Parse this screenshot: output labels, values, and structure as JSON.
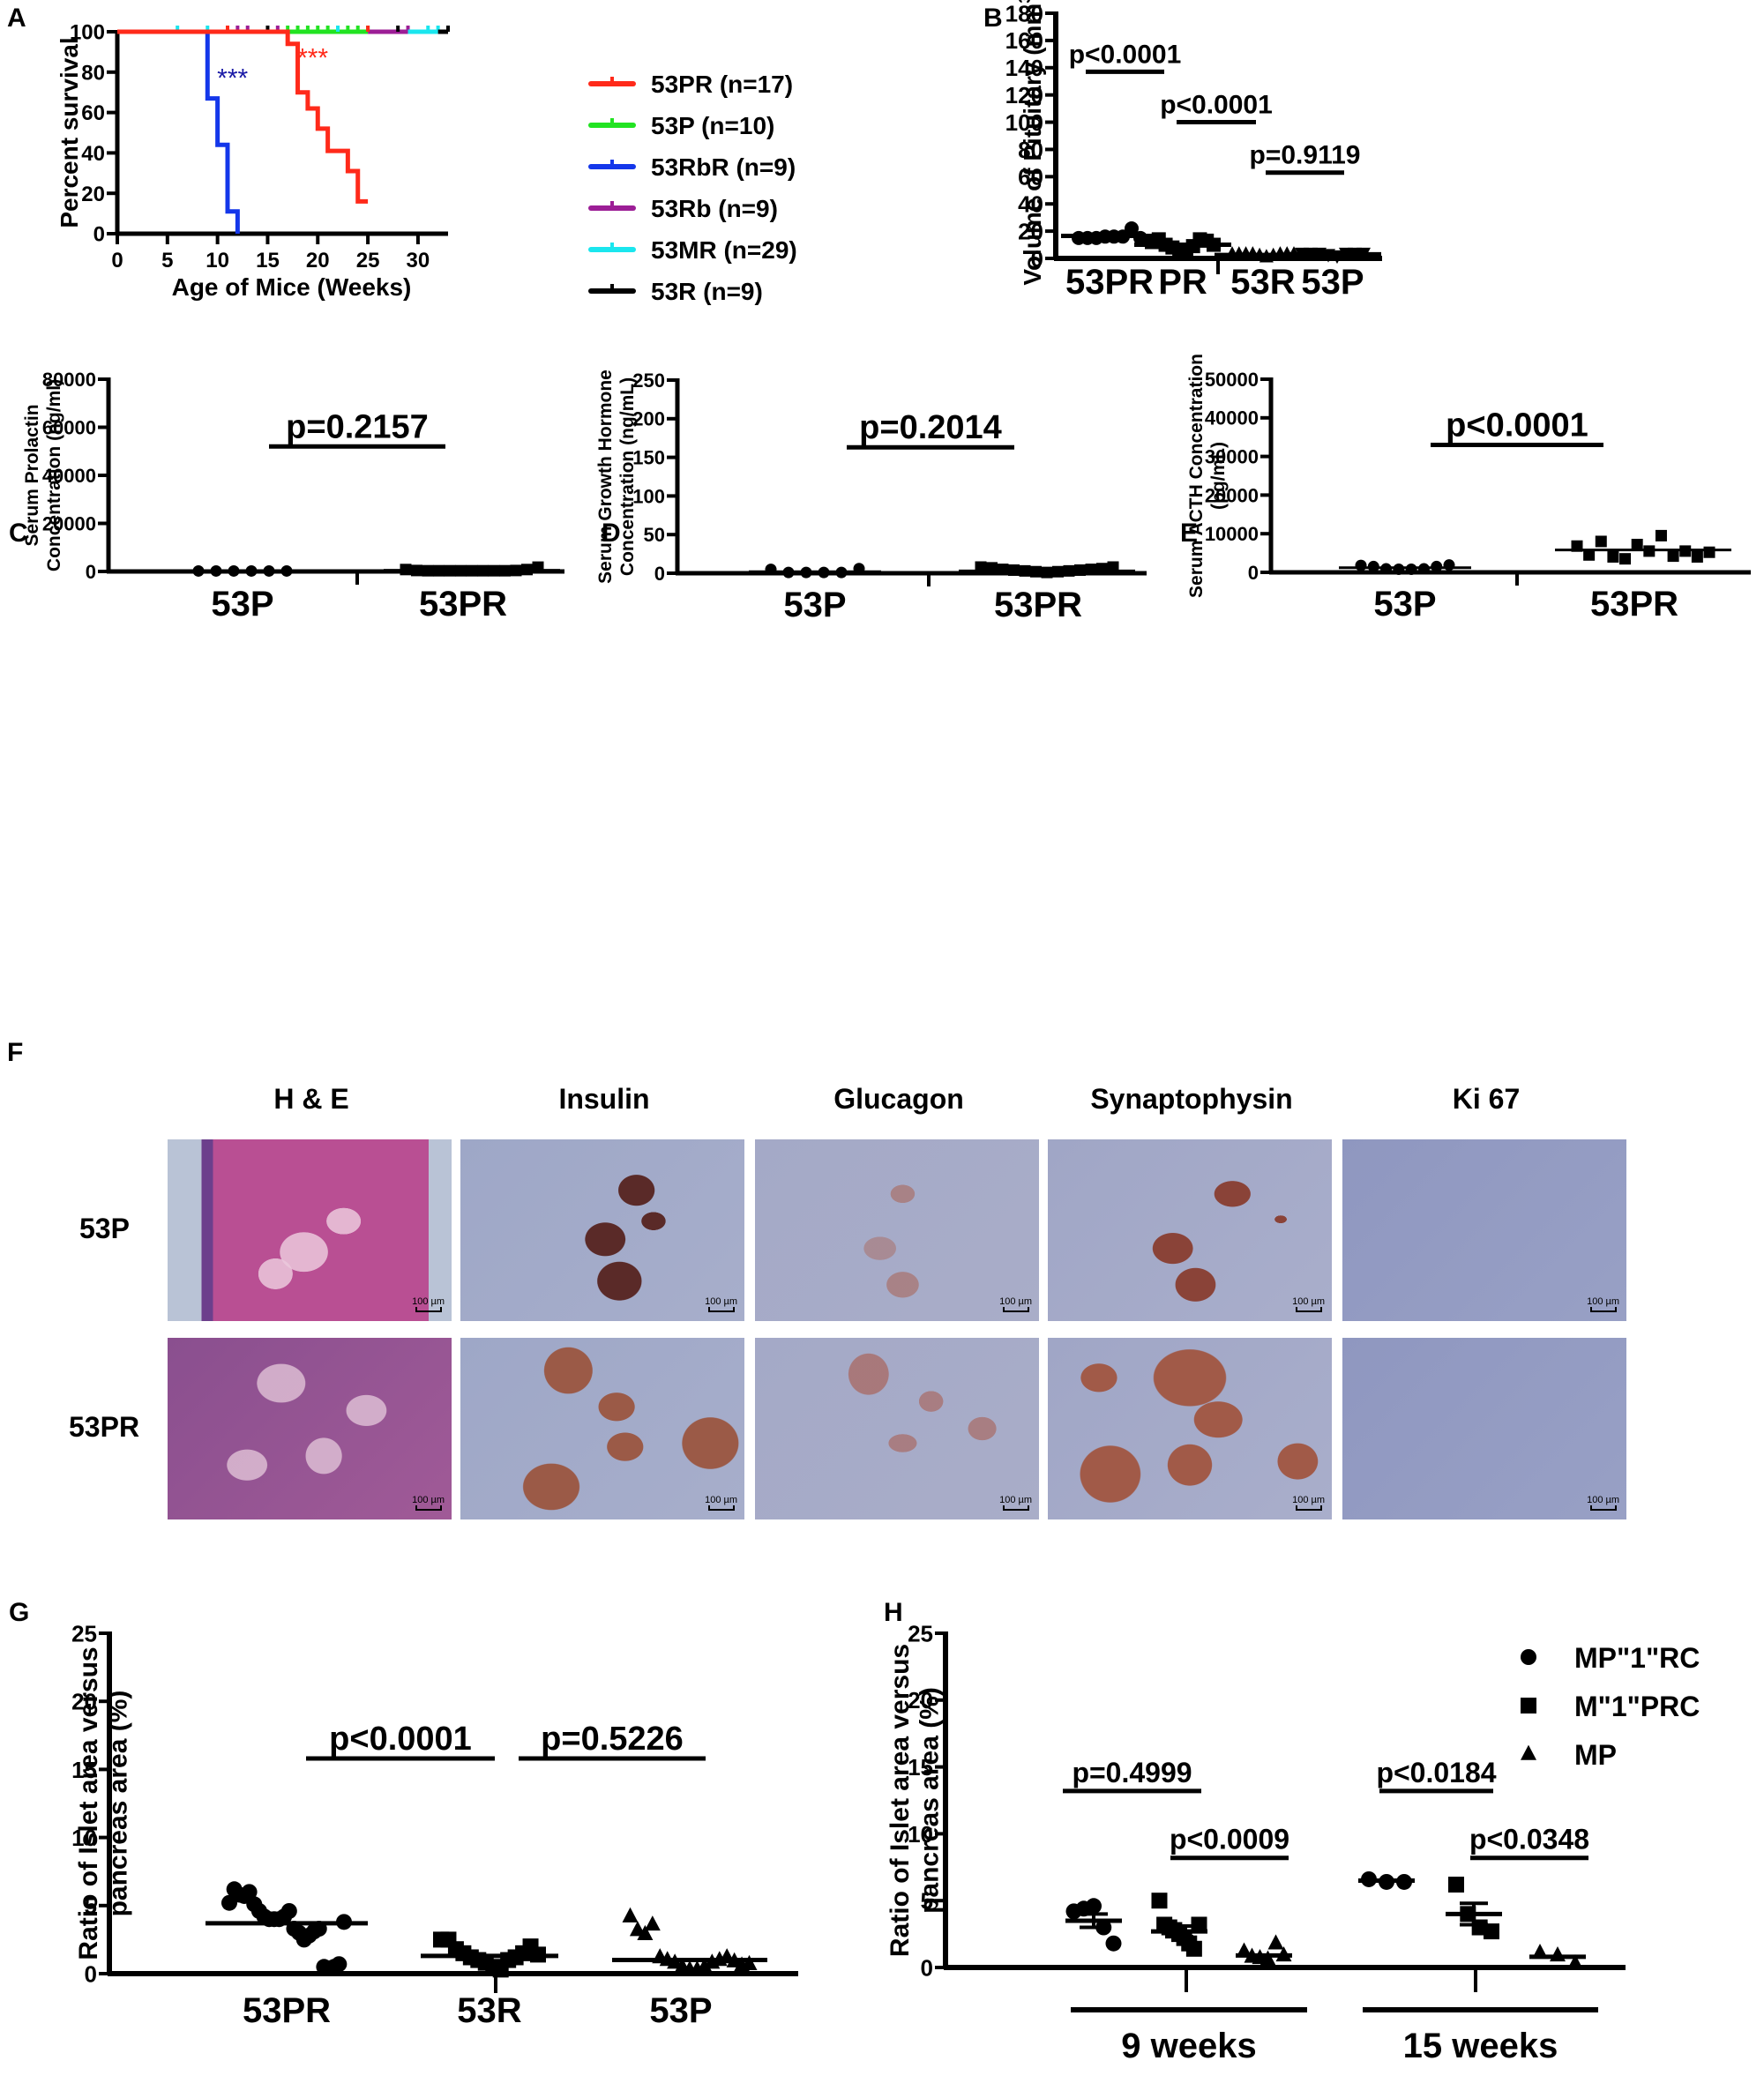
{
  "panels": {
    "A": "A",
    "B": "B",
    "C": "C",
    "D": "D",
    "E": "E",
    "F": "F",
    "G": "G",
    "H": "H"
  },
  "chart_data": [
    {
      "panel": "A",
      "type": "line",
      "subtype": "kaplan-meier step",
      "title": "",
      "xlabel": "Age of Mice (Weeks)",
      "ylabel": "Percent survival",
      "xlim": [
        0,
        33
      ],
      "ylim": [
        0,
        100
      ],
      "xticks": [
        0,
        5,
        10,
        15,
        20,
        25,
        30
      ],
      "yticks": [
        0,
        20,
        40,
        60,
        80,
        100
      ],
      "legend_position": "right",
      "annotations": [
        {
          "text": "***",
          "color": "#1a1aa6",
          "x": 11.5,
          "y": 78
        },
        {
          "text": "***",
          "color": "#ff2a1a",
          "x": 19.5,
          "y": 88
        }
      ],
      "series": [
        {
          "name": "53PR (n=17)",
          "color": "#ff2a1a",
          "steps": [
            [
              0,
              100
            ],
            [
              17,
              100
            ],
            [
              17,
              94
            ],
            [
              18,
              94
            ],
            [
              18,
              70
            ],
            [
              19,
              70
            ],
            [
              19,
              62
            ],
            [
              20,
              62
            ],
            [
              20,
              52
            ],
            [
              21,
              52
            ],
            [
              21,
              41
            ],
            [
              23,
              41
            ],
            [
              23,
              31
            ],
            [
              24,
              31
            ],
            [
              24,
              16
            ],
            [
              25,
              16
            ]
          ],
          "censor_x": [
            11,
            25
          ]
        },
        {
          "name": "53P (n=10)",
          "color": "#22e322",
          "steps": [
            [
              17,
              100
            ],
            [
              25,
              100
            ]
          ],
          "censor_x": [
            17,
            18,
            19,
            20,
            21,
            22,
            23,
            24,
            25
          ]
        },
        {
          "name": "53RbR (n=9)",
          "color": "#1437ea",
          "steps": [
            [
              0,
              100
            ],
            [
              9,
              100
            ],
            [
              9,
              67
            ],
            [
              10,
              67
            ],
            [
              10,
              44
            ],
            [
              11,
              44
            ],
            [
              11,
              11
            ],
            [
              12,
              11
            ],
            [
              12,
              0
            ]
          ],
          "censor_x": []
        },
        {
          "name": "53Rb (n=9)",
          "color": "#9c1e96",
          "steps": [
            [
              25,
              100
            ],
            [
              29,
              100
            ]
          ],
          "censor_x": [
            12,
            13,
            16,
            29
          ]
        },
        {
          "name": "53MR (n=29)",
          "color": "#1ae6ee",
          "steps": [
            [
              29,
              100
            ],
            [
              32,
              100
            ]
          ],
          "censor_x": [
            6,
            9,
            22,
            31,
            32
          ]
        },
        {
          "name": "53R (n=9)",
          "color": "#000000",
          "steps": [
            [
              32,
              100
            ],
            [
              33,
              100
            ]
          ],
          "censor_x": [
            15,
            28,
            33
          ]
        }
      ]
    },
    {
      "panel": "B",
      "type": "scatter",
      "title": "",
      "xlabel": "",
      "ylabel": "Volume of Pituitary (mm³)",
      "ylabel_main": "Volume of Pituitary (mm",
      "ylabel_sup": "3",
      "ylim": [
        0,
        180
      ],
      "yticks": [
        0,
        20,
        40,
        60,
        80,
        100,
        120,
        140,
        160,
        180
      ],
      "categories": [
        "53PR",
        "PR",
        "53R",
        "53P"
      ],
      "markers": [
        "circle",
        "square",
        "triangle",
        "inverted-triangle"
      ],
      "series": [
        {
          "name": "53PR",
          "mean": 16.5,
          "values": [
            15,
            15,
            15,
            16,
            16,
            16,
            22,
            15
          ]
        },
        {
          "name": "PR",
          "mean": 10,
          "values": [
            12,
            14,
            10,
            8,
            5,
            6,
            9,
            14,
            13,
            10
          ]
        },
        {
          "name": "53R",
          "mean": 2.5,
          "values": [
            3,
            3,
            3,
            3,
            2,
            1,
            2,
            3,
            3,
            3
          ]
        },
        {
          "name": "53P",
          "mean": 3,
          "values": [
            4,
            4,
            4,
            3,
            2,
            4,
            4,
            4
          ]
        }
      ],
      "comparisons": [
        {
          "label": "p<0.0001",
          "y": 137
        },
        {
          "label": "p<0.0001",
          "y": 100
        },
        {
          "label": "p=0.9119",
          "y": 63
        }
      ]
    },
    {
      "panel": "C",
      "type": "scatter",
      "title": "",
      "ylabel": "Serum Prolactin Concentration (ng/ml)",
      "ylabel_lines": [
        "Serum Prolactin",
        "Concentration (ng/ml)"
      ],
      "ylim": [
        0,
        80000
      ],
      "yticks": [
        0,
        20000,
        40000,
        60000,
        80000
      ],
      "categories": [
        "53P",
        "53PR"
      ],
      "markers": [
        "circle",
        "square"
      ],
      "series": [
        {
          "name": "53P",
          "mean": 200,
          "values": [
            200,
            200,
            200,
            200,
            200,
            200
          ]
        },
        {
          "name": "53PR",
          "mean": 500,
          "values": [
            800,
            400,
            300,
            300,
            300,
            300,
            300,
            300,
            300,
            300,
            400,
            800,
            1800
          ]
        }
      ],
      "comparisons": [
        {
          "label": "p=0.2157",
          "y": 52000
        }
      ]
    },
    {
      "panel": "D",
      "type": "scatter",
      "title": "",
      "ylabel": "Serum Growth Hormone Concentration (ng/mL)",
      "ylabel_lines": [
        "Serum Growth Hormone",
        "Concentration (ng/mL)"
      ],
      "ylim": [
        0,
        250
      ],
      "yticks": [
        0,
        50,
        100,
        150,
        200,
        250
      ],
      "categories": [
        "53P",
        "53PR"
      ],
      "markers": [
        "circle",
        "square"
      ],
      "series": [
        {
          "name": "53P",
          "mean": 2,
          "values": [
            5,
            1,
            1,
            1,
            1,
            6
          ]
        },
        {
          "name": "53PR",
          "mean": 3,
          "values": [
            8,
            7,
            5,
            4,
            3,
            2,
            1,
            2,
            3,
            4,
            5,
            6,
            8
          ]
        }
      ],
      "comparisons": [
        {
          "label": "p=0.2014",
          "y": 163
        }
      ]
    },
    {
      "panel": "E",
      "type": "scatter",
      "title": "",
      "ylabel": "Serum ACTH Concentration (pg/mL)",
      "ylabel_lines": [
        "Serum ACTH Concentration",
        "(pg/mL)"
      ],
      "ylim": [
        0,
        50000
      ],
      "yticks": [
        0,
        10000,
        20000,
        30000,
        40000,
        50000
      ],
      "categories": [
        "53P",
        "53PR"
      ],
      "markers": [
        "circle",
        "square"
      ],
      "series": [
        {
          "name": "53P",
          "mean": 1200,
          "values": [
            1800,
            1500,
            900,
            800,
            800,
            900,
            1500,
            1900
          ]
        },
        {
          "name": "53PR",
          "mean": 5800,
          "values": [
            6800,
            4500,
            8000,
            4000,
            3500,
            7200,
            5500,
            9500,
            4200,
            5500,
            4000,
            5200
          ]
        }
      ],
      "comparisons": [
        {
          "label": "p<0.0001",
          "y": 33000
        }
      ]
    },
    {
      "panel": "G",
      "type": "scatter",
      "title": "",
      "ylabel": "Ratio of Islet area versus pancreas area (%)",
      "ylabel_lines": [
        "Ratio of Islet area versus",
        "pancreas area (%)"
      ],
      "ylim": [
        0,
        25
      ],
      "yticks": [
        0,
        5,
        10,
        15,
        20,
        25
      ],
      "categories": [
        "53PR",
        "53R",
        "53P"
      ],
      "markers": [
        "circle",
        "square",
        "triangle"
      ],
      "series": [
        {
          "name": "53PR",
          "mean": 3.7,
          "values": [
            5.2,
            6.2,
            5.8,
            5.7,
            6.0,
            5.1,
            4.6,
            4.2,
            4.0,
            4.0,
            4.0,
            4.2,
            4.6,
            3.3,
            3.0,
            2.5,
            2.8,
            3.1,
            3.3,
            0.5,
            0.4,
            0.5,
            0.7,
            3.8
          ]
        },
        {
          "name": "53R",
          "mean": 1.3,
          "values": [
            2.5,
            2.5,
            1.8,
            1.5,
            1.2,
            1.0,
            0.8,
            0.5,
            0.3,
            1.0,
            1.2,
            1.5,
            2.0,
            1.4
          ]
        },
        {
          "name": "53P",
          "mean": 1.0,
          "values": [
            4.2,
            3.2,
            2.9,
            3.6,
            1.2,
            1.0,
            0.8,
            0.5,
            0.3,
            0.3,
            0.5,
            0.8,
            1.0,
            1.2,
            0.9,
            0.6,
            0.7
          ]
        }
      ],
      "comparisons": [
        {
          "label": "p<0.0001",
          "y": 15.8
        },
        {
          "label": "p=0.5226",
          "y": 15.8
        }
      ]
    },
    {
      "panel": "H",
      "type": "scatter",
      "title": "",
      "ylabel": "Ratio of Islet area versus pancreas area (%)",
      "ylabel_lines": [
        "Ratio of Islet area versus",
        "pancreas area (%)"
      ],
      "ylim": [
        0,
        25
      ],
      "yticks": [
        0,
        5,
        10,
        15,
        20,
        25
      ],
      "categories": [
        "9 weeks",
        "15 weeks"
      ],
      "legend_position": "top-right",
      "legend": [
        {
          "marker": "circle",
          "label": "MP\"1\"RC"
        },
        {
          "marker": "square",
          "label": "M\"1\"PRC"
        },
        {
          "marker": "triangle",
          "label": "MP"
        }
      ],
      "series": [
        {
          "name": "MP\"1\"RC",
          "group": "9 weeks",
          "mean": 3.5,
          "sem": 0.5,
          "values": [
            4.2,
            4.4,
            4.6,
            3.0,
            1.8
          ]
        },
        {
          "name": "M\"1\"PRC",
          "group": "9 weeks",
          "mean": 2.7,
          "sem": 0.4,
          "values": [
            5.0,
            3.2,
            3.0,
            2.8,
            2.5,
            2.2,
            1.8,
            1.4,
            3.2
          ]
        },
        {
          "name": "MP",
          "group": "9 weeks",
          "mean": 0.9,
          "sem": 0.1,
          "values": [
            1.2,
            0.8,
            0.7,
            0.6,
            1.8,
            0.9
          ]
        },
        {
          "name": "MP\"1\"RC",
          "group": "15 weeks",
          "mean": 6.5,
          "sem": 0.1,
          "values": [
            6.6,
            6.4,
            6.4
          ]
        },
        {
          "name": "M\"1\"PRC",
          "group": "15 weeks",
          "mean": 4.0,
          "sem": 0.8,
          "values": [
            6.2,
            4.0,
            3.0,
            2.7
          ]
        },
        {
          "name": "MP",
          "group": "15 weeks",
          "mean": 0.8,
          "sem": 0.1,
          "values": [
            1.1,
            0.9,
            0.3
          ]
        }
      ],
      "comparisons": [
        {
          "label": "p=0.4999",
          "y": 13.2
        },
        {
          "label": "p<0.0009",
          "y": 8.2
        },
        {
          "label": "p<0.0184",
          "y": 13.2
        },
        {
          "label": "p<0.0348",
          "y": 8.2
        }
      ]
    }
  ],
  "histology": {
    "columns": [
      "H & E",
      "Insulin",
      "Glucagon",
      "Synaptophysin",
      "Ki 67"
    ],
    "rows": [
      "53P",
      "53PR"
    ],
    "scale_bar": "100 µm"
  }
}
